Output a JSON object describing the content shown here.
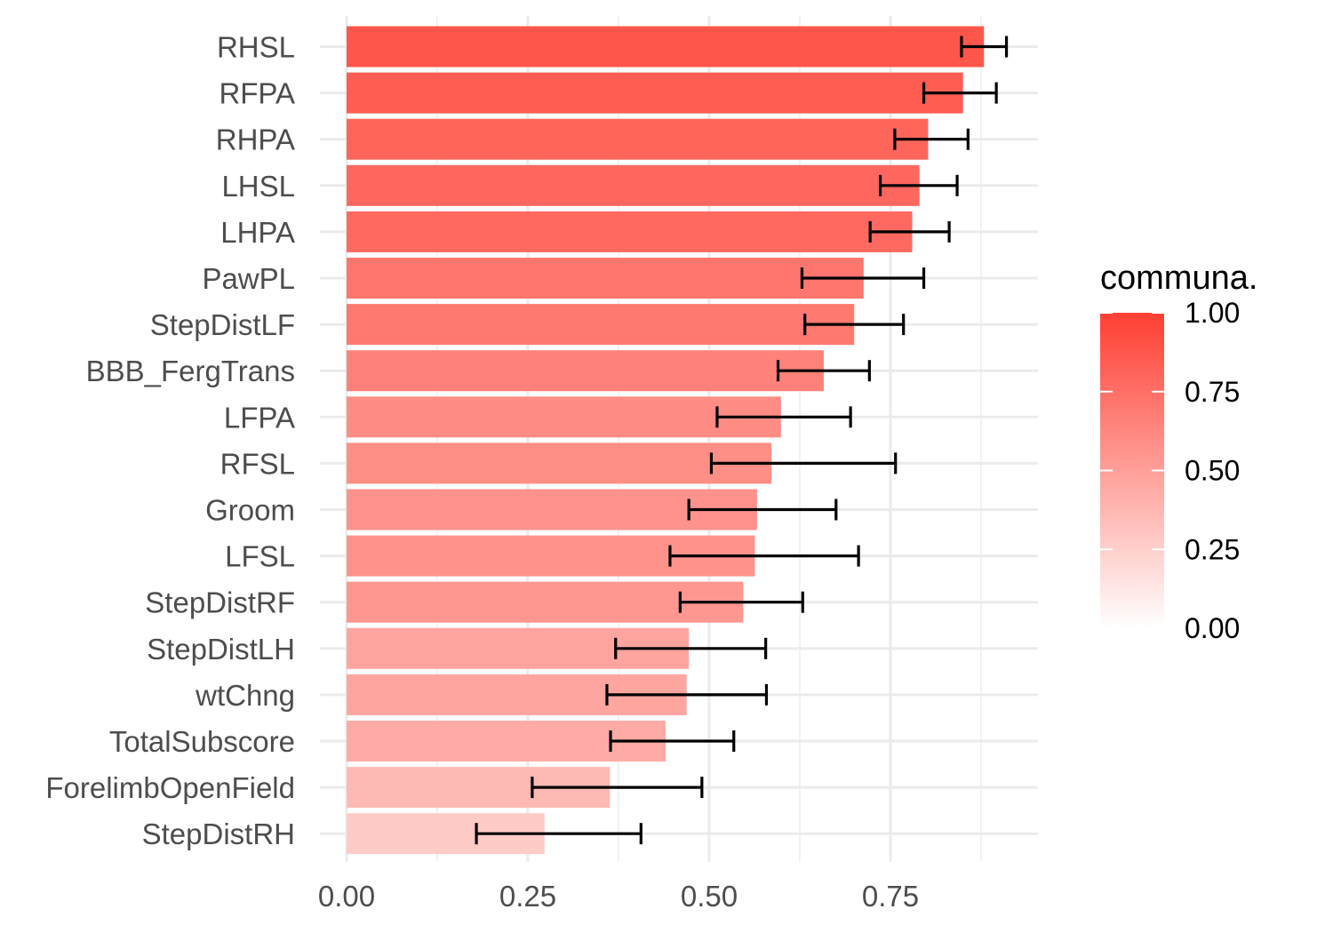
{
  "chart_data": {
    "type": "bar",
    "orientation": "horizontal",
    "title": "",
    "xlabel": "",
    "ylabel": "",
    "xlim": [
      0,
      0.955
    ],
    "xticks": [
      0,
      0.25,
      0.5,
      0.75
    ],
    "xtick_labels": [
      "0.00",
      "0.25",
      "0.50",
      "0.75"
    ],
    "grid": true,
    "categories": [
      "RHSL",
      "RFPA",
      "RHPA",
      "LHSL",
      "LHPA",
      "PawPL",
      "StepDistLF",
      "BBB_FergTrans",
      "LFPA",
      "RFSL",
      "Groom",
      "LFSL",
      "StepDistRF",
      "StepDistLH",
      "wtChng",
      "TotalSubscore",
      "ForelimbOpenField",
      "StepDistRH"
    ],
    "values": [
      0.879,
      0.85,
      0.802,
      0.79,
      0.78,
      0.713,
      0.7,
      0.658,
      0.599,
      0.586,
      0.566,
      0.563,
      0.547,
      0.472,
      0.469,
      0.44,
      0.363,
      0.273
    ],
    "error_low": [
      0.848,
      0.796,
      0.756,
      0.736,
      0.722,
      0.628,
      0.632,
      0.595,
      0.511,
      0.503,
      0.472,
      0.446,
      0.46,
      0.371,
      0.359,
      0.364,
      0.256,
      0.179
    ],
    "error_high": [
      0.91,
      0.896,
      0.857,
      0.842,
      0.831,
      0.796,
      0.768,
      0.721,
      0.695,
      0.757,
      0.675,
      0.706,
      0.629,
      0.578,
      0.579,
      0.534,
      0.49,
      0.406
    ],
    "fill_scale": {
      "low": "#ffffff",
      "high": "#ff3f33",
      "domain": [
        0,
        1
      ]
    },
    "legend": {
      "title": "communa.",
      "position": "right",
      "labels": [
        "1.00",
        "0.75",
        "0.50",
        "0.25",
        "0.00"
      ],
      "values": [
        1.0,
        0.75,
        0.5,
        0.25,
        0.0
      ]
    }
  }
}
